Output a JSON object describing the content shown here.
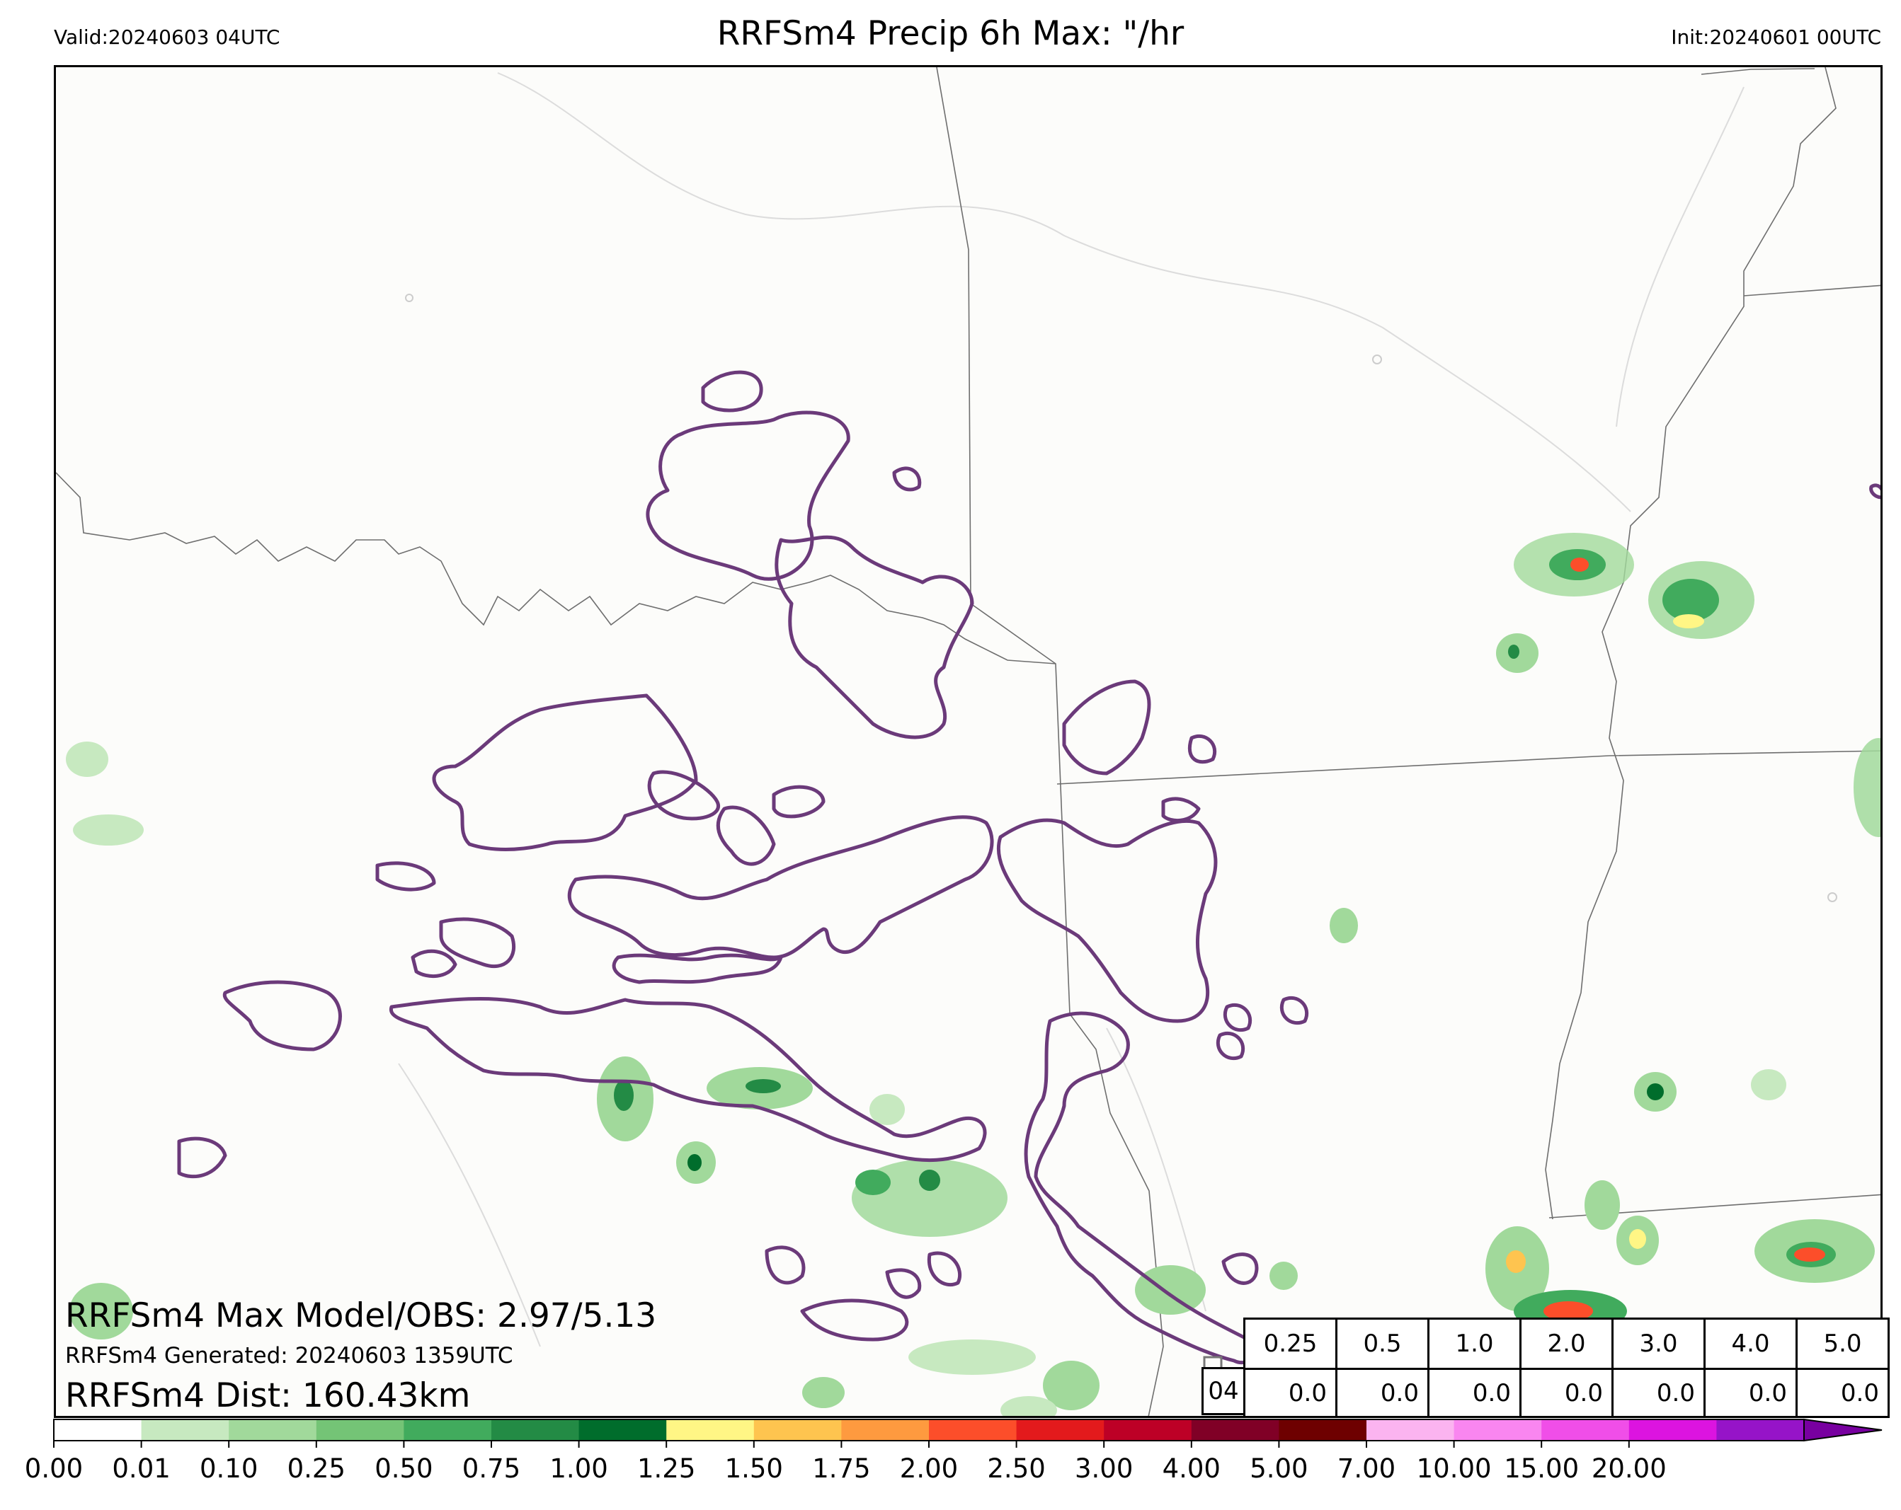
{
  "header": {
    "valid": "Valid:20240603 04UTC",
    "title": "RRFSm4 Precip 6h Max: \"/hr",
    "init": "Init:20240601 00UTC"
  },
  "stats": {
    "max_model_obs": "RRFSm4 Max Model/OBS: 2.97/5.13",
    "generated": "RRFSm4 Generated: 20240603 1359UTC",
    "dist": "RRFSm4 Dist: 160.43km"
  },
  "threshold_table": {
    "hour": "04",
    "thresholds": [
      "0.25",
      "0.5",
      "1.0",
      "2.0",
      "3.0",
      "4.0",
      "5.0"
    ],
    "values": [
      "0.0",
      "0.0",
      "0.0",
      "0.0",
      "0.0",
      "0.0",
      "0.0"
    ]
  },
  "colorbar": {
    "tick_labels": [
      "0.00",
      "0.01",
      "0.10",
      "0.25",
      "0.50",
      "0.75",
      "1.00",
      "1.25",
      "1.50",
      "1.75",
      "2.00",
      "2.50",
      "3.00",
      "4.00",
      "5.00",
      "7.00",
      "10.00",
      "15.00",
      "20.00"
    ],
    "colors": [
      "#ffffff",
      "#c7e9c0",
      "#a1d99b",
      "#74c476",
      "#41ab5d",
      "#238b45",
      "#006d2c",
      "#fff685",
      "#fec44f",
      "#fe9a3f",
      "#fc4e2a",
      "#e31a1c",
      "#bd0026",
      "#800026",
      "#6e0000",
      "#fbb4f0",
      "#f986f0",
      "#f04ee8",
      "#dc14e0",
      "#9614c8",
      "#7800a0"
    ]
  },
  "map": {
    "obs_contour_color": "#6b3a7a",
    "border_color": "#555555",
    "river_color": "#d8d8d8"
  }
}
